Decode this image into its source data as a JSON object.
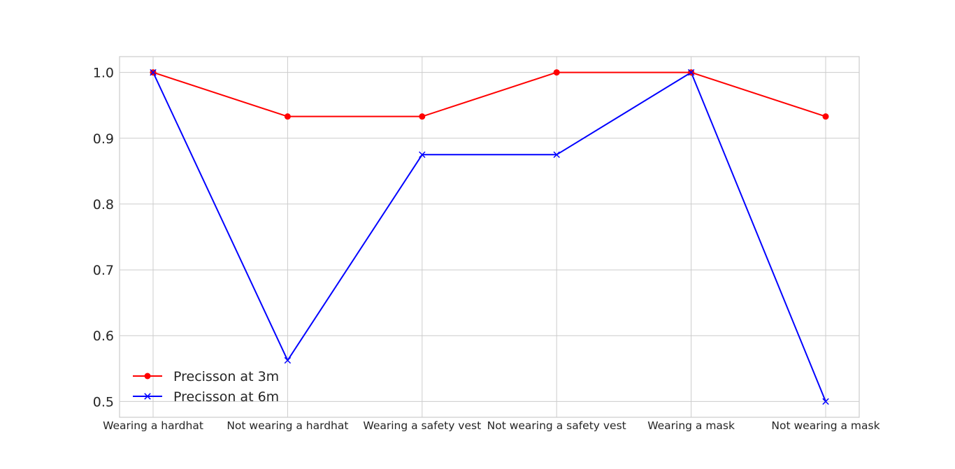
{
  "chart_data": {
    "type": "line",
    "title": "",
    "xlabel": "",
    "ylabel": "",
    "categories": [
      "Wearing a hardhat",
      "Not wearing a hardhat",
      "Wearing a safety vest",
      "Not wearing a safety vest",
      "Wearing a mask",
      "Not wearing a mask"
    ],
    "series": [
      {
        "name": "Precisson at 3m",
        "values": [
          1.0,
          0.933,
          0.933,
          1.0,
          1.0,
          0.933
        ],
        "color": "#ff0000",
        "marker": "circle"
      },
      {
        "name": "Precisson at 6m",
        "values": [
          1.0,
          0.5625,
          0.875,
          0.875,
          1.0,
          0.5
        ],
        "color": "#0000ff",
        "marker": "x"
      }
    ],
    "ylim": [
      0.476,
      1.024
    ],
    "yticks": [
      "0.5",
      "0.6",
      "0.7",
      "0.8",
      "0.9",
      "1.0"
    ],
    "grid": true,
    "legend_position": "lower-left"
  }
}
